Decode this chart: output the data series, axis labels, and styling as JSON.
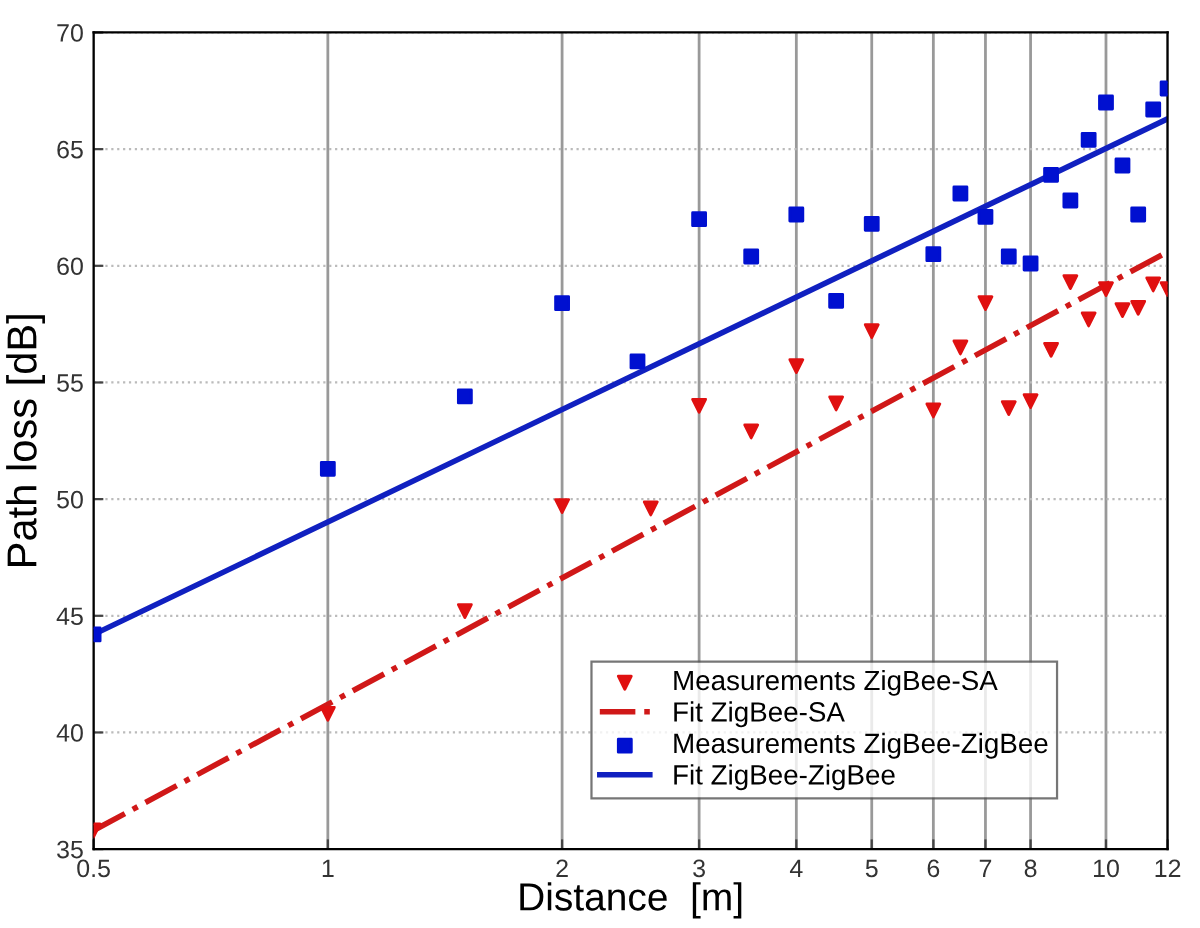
{
  "chart_data": {
    "type": "scatter",
    "xlabel": "Distance  [m]",
    "ylabel": "Path loss [dB]",
    "log": "x",
    "grid": true,
    "legend": "bottom right",
    "xlim": [
      0.5,
      12
    ],
    "xticks": [
      0.5,
      1,
      2,
      3,
      4,
      5,
      6,
      7,
      8,
      10,
      12
    ],
    "ylim": [
      35,
      70
    ],
    "yticks": [
      35,
      40,
      45,
      50,
      55,
      60,
      65,
      70
    ],
    "series": [
      {
        "name": "Measurements ZigBee-SA",
        "marker": "triangle",
        "color": "#e01010",
        "x": [
          0.5,
          1,
          1.5,
          2,
          2.6,
          3,
          3.5,
          4,
          4.5,
          5,
          6,
          6.5,
          7,
          7.5,
          8,
          8.5,
          9,
          9.5,
          10,
          10.5,
          11,
          11.5,
          12
        ],
        "values": [
          35.8,
          40.8,
          45.2,
          49.7,
          49.6,
          54.0,
          52.9,
          55.7,
          54.1,
          57.2,
          53.8,
          56.5,
          58.4,
          53.9,
          54.2,
          56.4,
          59.3,
          57.7,
          59.0,
          58.1,
          58.2,
          59.2,
          59.0
        ]
      },
      {
        "name": "Fit ZigBee-SA",
        "type": "line",
        "line_style": "dashdot",
        "color": "#d01818",
        "x": [
          0.5,
          12
        ],
        "values": [
          35.8,
          60.6
        ]
      },
      {
        "name": "Measurements ZigBee-ZigBee",
        "marker": "square",
        "color": "#0010d0",
        "x": [
          0.5,
          1,
          1.5,
          2,
          2.5,
          3,
          3.5,
          4,
          4.5,
          5,
          6,
          6.5,
          7,
          7.5,
          8,
          8.5,
          9,
          9.5,
          10,
          10.5,
          11,
          11.5,
          12
        ],
        "values": [
          44.2,
          51.3,
          54.4,
          58.4,
          55.9,
          62.0,
          60.4,
          62.2,
          58.5,
          61.8,
          60.5,
          63.1,
          62.1,
          60.4,
          60.1,
          63.9,
          62.8,
          65.4,
          67.0,
          64.3,
          62.2,
          66.7,
          67.6
        ]
      },
      {
        "name": "Fit ZigBee-ZigBee",
        "type": "line",
        "line_style": "solid",
        "color": "#1020c0",
        "x": [
          0.5,
          12
        ],
        "values": [
          44.2,
          66.3
        ]
      }
    ]
  }
}
